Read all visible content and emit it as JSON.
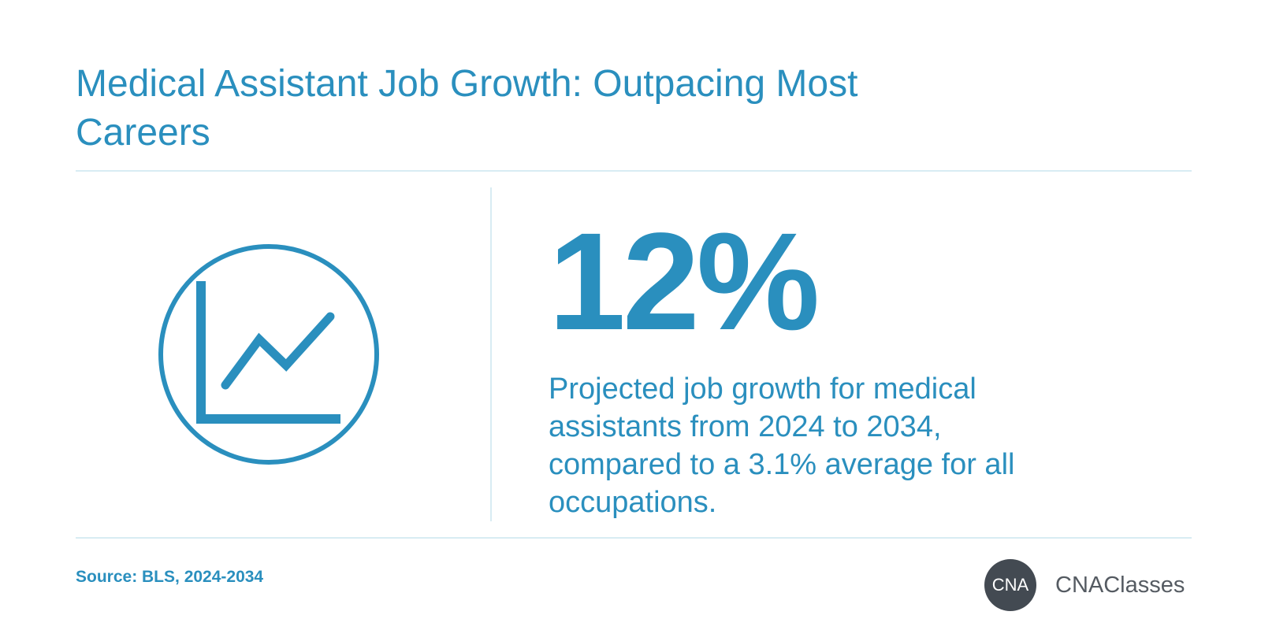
{
  "title": "Medical Assistant Job Growth: Outpacing Most Careers",
  "stat": {
    "value": "12%",
    "description": "Projected job growth for medical assistants from 2024 to 2034, compared to a 3.1% average for all occupations."
  },
  "icon": "line-chart-growth-icon",
  "source": "Source: BLS, 2024-2034",
  "brand": {
    "badge_text": "CNA",
    "name": "CNAClasses"
  },
  "colors": {
    "accent": "#2a8fbe",
    "divider": "#d8ecf3",
    "badge": "#434a52",
    "brand_text": "#555b62"
  }
}
